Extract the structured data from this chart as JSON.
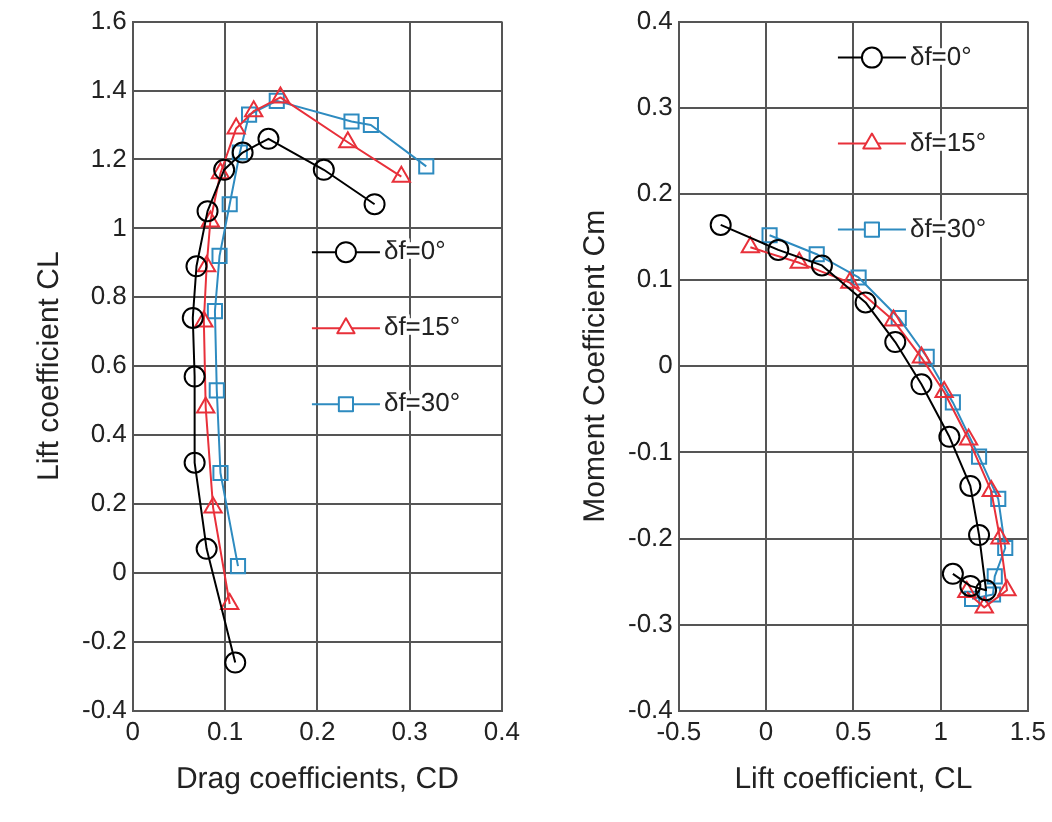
{
  "chart_data": [
    {
      "type": "line",
      "xlabel": "Drag coefficients, CD",
      "ylabel": "Lift coefficient CL",
      "xlim": [
        0,
        0.4
      ],
      "xticks": [
        0,
        0.1,
        0.2,
        0.3,
        0.4
      ],
      "ylim": [
        -0.4,
        1.6
      ],
      "yticks": [
        -0.4,
        -0.2,
        0,
        0.2,
        0.4,
        0.6,
        0.8,
        1,
        1.2,
        1.4,
        1.6
      ],
      "grid": true,
      "legend": "right",
      "line_style": "solid",
      "series": [
        {
          "name": "δf=0°",
          "color": "#000000",
          "marker": "circle",
          "x": [
            0.111,
            0.08,
            0.067,
            0.067,
            0.065,
            0.069,
            0.081,
            0.099,
            0.119,
            0.147,
            0.207,
            0.262
          ],
          "values": [
            -0.26,
            0.07,
            0.32,
            0.57,
            0.74,
            0.89,
            1.05,
            1.17,
            1.22,
            1.26,
            1.17,
            1.07
          ]
        },
        {
          "name": "δf=15°",
          "color": "#e8303a",
          "marker": "triangle",
          "x": [
            0.105,
            0.087,
            0.079,
            0.077,
            0.08,
            0.084,
            0.095,
            0.112,
            0.131,
            0.16,
            0.233,
            0.291
          ],
          "values": [
            -0.09,
            0.19,
            0.48,
            0.73,
            0.89,
            1.02,
            1.16,
            1.29,
            1.34,
            1.38,
            1.25,
            1.15
          ]
        },
        {
          "name": "δf=30°",
          "color": "#2e8bc0",
          "marker": "square",
          "x": [
            0.114,
            0.095,
            0.091,
            0.089,
            0.094,
            0.105,
            0.116,
            0.126,
            0.156,
            0.237,
            0.258,
            0.318
          ],
          "values": [
            0.02,
            0.29,
            0.53,
            0.76,
            0.92,
            1.07,
            1.22,
            1.33,
            1.37,
            1.31,
            1.3,
            1.18
          ]
        }
      ]
    },
    {
      "type": "line",
      "xlabel": "Lift coefficient, CL",
      "ylabel": "Moment Coefficient Cm",
      "xlim": [
        -0.5,
        1.5
      ],
      "xticks": [
        -0.5,
        0,
        0.5,
        1,
        1.5
      ],
      "ylim": [
        -0.4,
        0.4
      ],
      "yticks": [
        -0.4,
        -0.3,
        -0.2,
        -0.1,
        0,
        0.1,
        0.2,
        0.3,
        0.4
      ],
      "grid": true,
      "legend": "top right",
      "line_style": "solid",
      "series": [
        {
          "name": "δf=0°",
          "color": "#000000",
          "marker": "circle",
          "x": [
            -0.26,
            0.07,
            0.32,
            0.57,
            0.74,
            0.89,
            1.05,
            1.17,
            1.22,
            1.26,
            1.17,
            1.07
          ],
          "values": [
            0.164,
            0.135,
            0.117,
            0.074,
            0.028,
            -0.021,
            -0.082,
            -0.139,
            -0.196,
            -0.26,
            -0.255,
            -0.241
          ]
        },
        {
          "name": "δf=15°",
          "color": "#e8303a",
          "marker": "triangle",
          "x": [
            -0.09,
            0.19,
            0.48,
            0.73,
            0.89,
            1.02,
            1.16,
            1.29,
            1.34,
            1.38,
            1.25,
            1.15
          ],
          "values": [
            0.138,
            0.12,
            0.097,
            0.053,
            0.01,
            -0.03,
            -0.085,
            -0.145,
            -0.2,
            -0.26,
            -0.28,
            -0.262
          ]
        },
        {
          "name": "δf=30°",
          "color": "#2e8bc0",
          "marker": "square",
          "x": [
            0.02,
            0.29,
            0.53,
            0.76,
            0.92,
            1.07,
            1.22,
            1.33,
            1.37,
            1.31,
            1.3,
            1.18
          ],
          "values": [
            0.152,
            0.13,
            0.103,
            0.056,
            0.011,
            -0.042,
            -0.105,
            -0.154,
            -0.211,
            -0.244,
            -0.265,
            -0.27
          ]
        }
      ]
    }
  ]
}
